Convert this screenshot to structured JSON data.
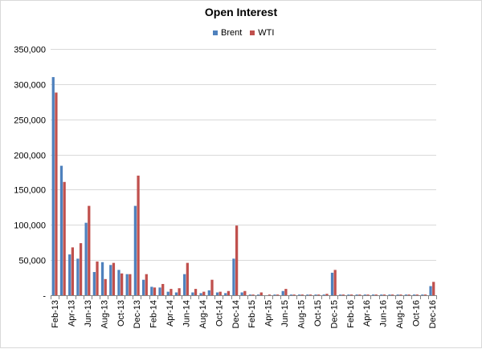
{
  "chart_data": {
    "type": "bar",
    "title": "Open Interest",
    "xlabel": "",
    "ylabel": "",
    "ylim": [
      0,
      350000
    ],
    "y_ticks": [
      "-",
      "50,000",
      "100,000",
      "150,000",
      "200,000",
      "250,000",
      "300,000",
      "350,000"
    ],
    "grid": true,
    "legend_position": "top",
    "categories": [
      "Feb-13",
      "Mar-13",
      "Apr-13",
      "May-13",
      "Jun-13",
      "Jul-13",
      "Aug-13",
      "Sep-13",
      "Oct-13",
      "Nov-13",
      "Dec-13",
      "Jan-14",
      "Feb-14",
      "Mar-14",
      "Apr-14",
      "May-14",
      "Jun-14",
      "Jul-14",
      "Aug-14",
      "Sep-14",
      "Oct-14",
      "Nov-14",
      "Dec-14",
      "Jan-15",
      "Feb-15",
      "Mar-15",
      "Apr-15",
      "May-15",
      "Jun-15",
      "Jul-15",
      "Aug-15",
      "Sep-15",
      "Oct-15",
      "Nov-15",
      "Dec-15",
      "Jan-16",
      "Feb-16",
      "Mar-16",
      "Apr-16",
      "May-16",
      "Jun-16",
      "Jul-16",
      "Aug-16",
      "Sep-16",
      "Oct-16",
      "Nov-16",
      "Dec-16"
    ],
    "tick_labels_shown": [
      "Feb-13",
      "Apr-13",
      "Jun-13",
      "Aug-13",
      "Oct-13",
      "Dec-13",
      "Feb-14",
      "Apr-14",
      "Jun-14",
      "Aug-14",
      "Oct-14",
      "Dec-14",
      "Feb-15",
      "Apr-15",
      "Jun-15",
      "Aug-15",
      "Oct-15",
      "Dec-15",
      "Feb-16",
      "Apr-16",
      "Jun-16",
      "Aug-16",
      "Oct-16",
      "Dec-16"
    ],
    "series": [
      {
        "name": "Brent",
        "color": "#4f81bd",
        "values": [
          310000,
          184000,
          58000,
          52000,
          103000,
          33000,
          47000,
          43000,
          36000,
          30000,
          127000,
          22000,
          12000,
          11000,
          5000,
          4000,
          30000,
          4000,
          3000,
          7000,
          4000,
          3000,
          52000,
          4000,
          1000,
          1000,
          0,
          1000,
          6000,
          1000,
          1000,
          1000,
          1000,
          1000,
          32000,
          1000,
          1000,
          1000,
          1000,
          1000,
          1000,
          1000,
          1000,
          1000,
          1000,
          1000,
          13000
        ]
      },
      {
        "name": "WTI",
        "color": "#c0504d",
        "values": [
          288000,
          161000,
          68000,
          74000,
          127000,
          48000,
          23000,
          46000,
          31000,
          30000,
          170000,
          30000,
          11000,
          16000,
          9000,
          10000,
          46000,
          9000,
          5000,
          22000,
          5000,
          6000,
          99000,
          6000,
          1000,
          4000,
          1000,
          1000,
          9000,
          1000,
          1000,
          1000,
          1000,
          2000,
          36000,
          1000,
          1000,
          1000,
          1000,
          1000,
          1000,
          1000,
          1000,
          1000,
          1000,
          1000,
          19000
        ]
      }
    ]
  }
}
